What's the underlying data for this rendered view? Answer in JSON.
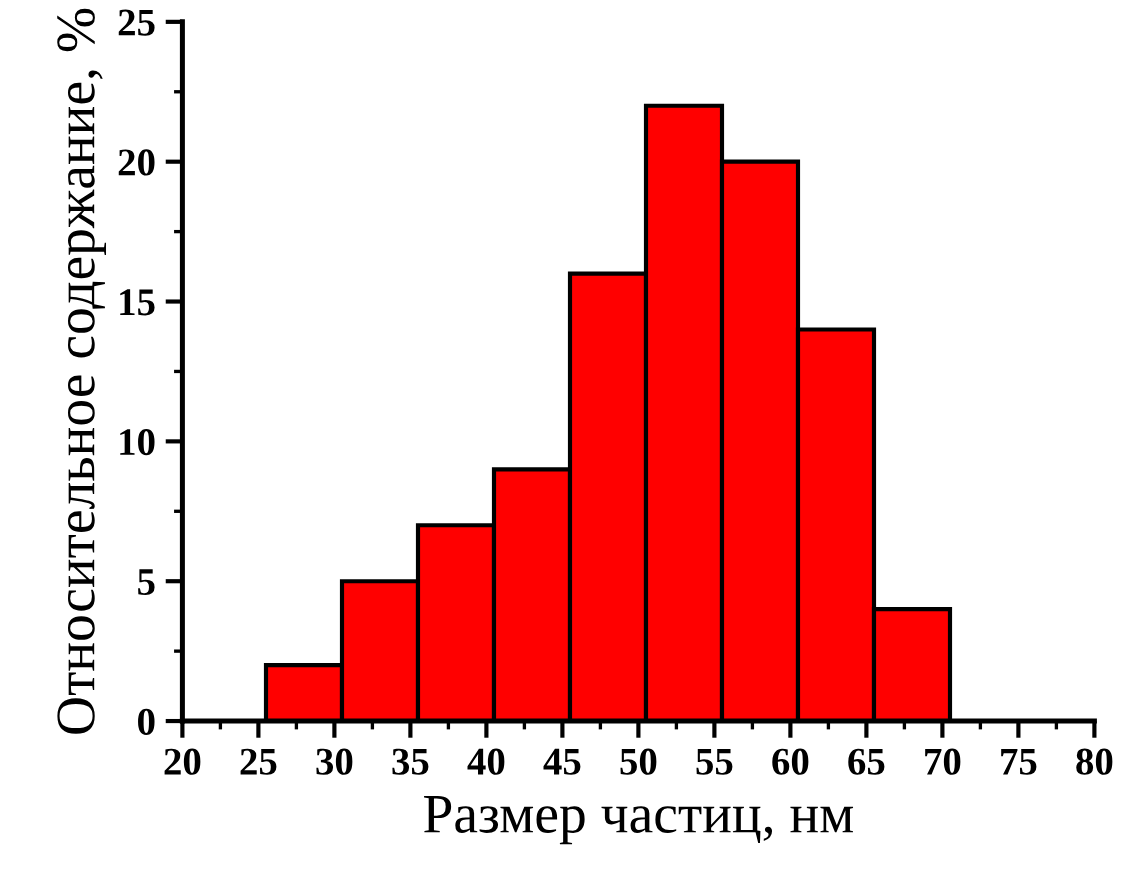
{
  "chart_data": {
    "type": "histogram",
    "xlabel": "Размер частиц, нм",
    "ylabel": "Относительное содержание, %",
    "bins": [
      25.5,
      30.5,
      35.5,
      40.5,
      45.5,
      50.5,
      55.5,
      60.5,
      65.5,
      70.5
    ],
    "values": [
      2,
      5,
      7,
      9,
      16,
      22,
      20,
      14,
      4
    ],
    "color": "#ff0000",
    "xlim": [
      20,
      80
    ],
    "xticks": [
      20,
      25,
      30,
      35,
      40,
      45,
      50,
      55,
      60,
      65,
      70,
      75,
      80
    ],
    "ylim": [
      0,
      25
    ],
    "yticks": [
      0,
      5,
      10,
      15,
      20,
      25
    ],
    "grid": false,
    "legend": false
  }
}
